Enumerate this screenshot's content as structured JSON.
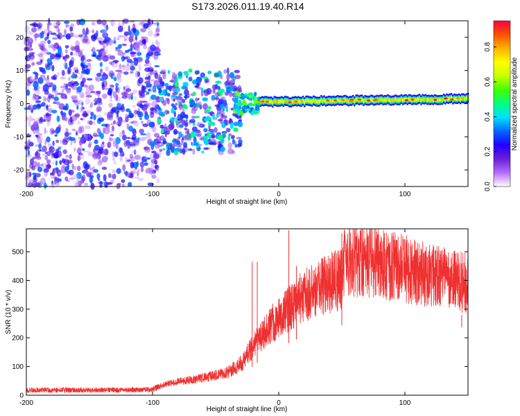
{
  "title": "S173.2026.011.19.40.R14",
  "chart_data": [
    {
      "type": "heatmap",
      "xlabel": "Height of straight line (km)",
      "ylabel": "Frequency (Hz)",
      "xlim": [
        -200,
        150
      ],
      "ylim": [
        -25,
        25
      ],
      "xticks": [
        -200,
        -100,
        0,
        100
      ],
      "yticks": [
        -20,
        -10,
        0,
        10,
        20
      ],
      "colorbar": {
        "label": "Normalized spectral amplitude",
        "range": [
          0.0,
          0.95
        ],
        "ticks": [
          0.0,
          0.2,
          0.4,
          0.6,
          0.8
        ],
        "tick_labels": [
          "0.0",
          "0.2",
          "0.4",
          "0.6",
          "0.8"
        ],
        "colors": [
          "#ffffff",
          "#b46cff",
          "#6a1fd6",
          "#2200ff",
          "#0066ff",
          "#00e0ff",
          "#00ff80",
          "#40ff00",
          "#c8ff00",
          "#ffff00",
          "#ffb000",
          "#ff5000",
          "#ff0040"
        ]
      },
      "regions": [
        {
          "name": "scattered noise",
          "x_range": [
            -200,
            -95
          ],
          "freq_range": [
            -25,
            25
          ],
          "amplitude": [
            0.05,
            0.35
          ]
        },
        {
          "name": "transition cluster",
          "x_range": [
            -95,
            -30
          ],
          "freq_range": [
            -15,
            10
          ],
          "amplitude": [
            0.1,
            0.5
          ]
        },
        {
          "name": "converging signal",
          "x_range": [
            -35,
            -15
          ],
          "freq_range": [
            -3,
            3
          ],
          "amplitude": [
            0.3,
            0.6
          ]
        },
        {
          "name": "narrow band near 0 Hz",
          "x_range": [
            -15,
            150
          ],
          "freq_center": [
            0.5,
            1.5
          ],
          "freq_halfwidth": 1.5,
          "peak_amplitude": 0.95
        }
      ]
    },
    {
      "type": "line",
      "xlabel": "Height of straight line (km)",
      "ylabel": "SNR (10 * v/v)",
      "xlim": [
        -200,
        150
      ],
      "ylim": [
        0,
        580
      ],
      "xticks": [
        -200,
        -100,
        0,
        100
      ],
      "yticks": [
        0,
        100,
        200,
        300,
        400,
        500
      ],
      "color": "#f03030",
      "trend": {
        "x": [
          -200,
          -120,
          -100,
          -90,
          -60,
          -40,
          -30,
          -20,
          -10,
          0,
          10,
          20,
          30,
          40,
          50,
          52,
          60,
          80,
          100,
          120,
          150
        ],
        "y": [
          18,
          18,
          20,
          40,
          60,
          80,
          110,
          170,
          230,
          270,
          310,
          345,
          370,
          390,
          405,
          460,
          470,
          460,
          440,
          415,
          390
        ]
      },
      "spikes": [
        {
          "x": -21,
          "y": 465
        },
        {
          "x": -17,
          "y": 465
        },
        {
          "x": 8,
          "y": 575
        },
        {
          "x": 14,
          "y": 450
        },
        {
          "x": 50,
          "y": 565
        },
        {
          "x": 145,
          "y": 280
        }
      ]
    }
  ]
}
